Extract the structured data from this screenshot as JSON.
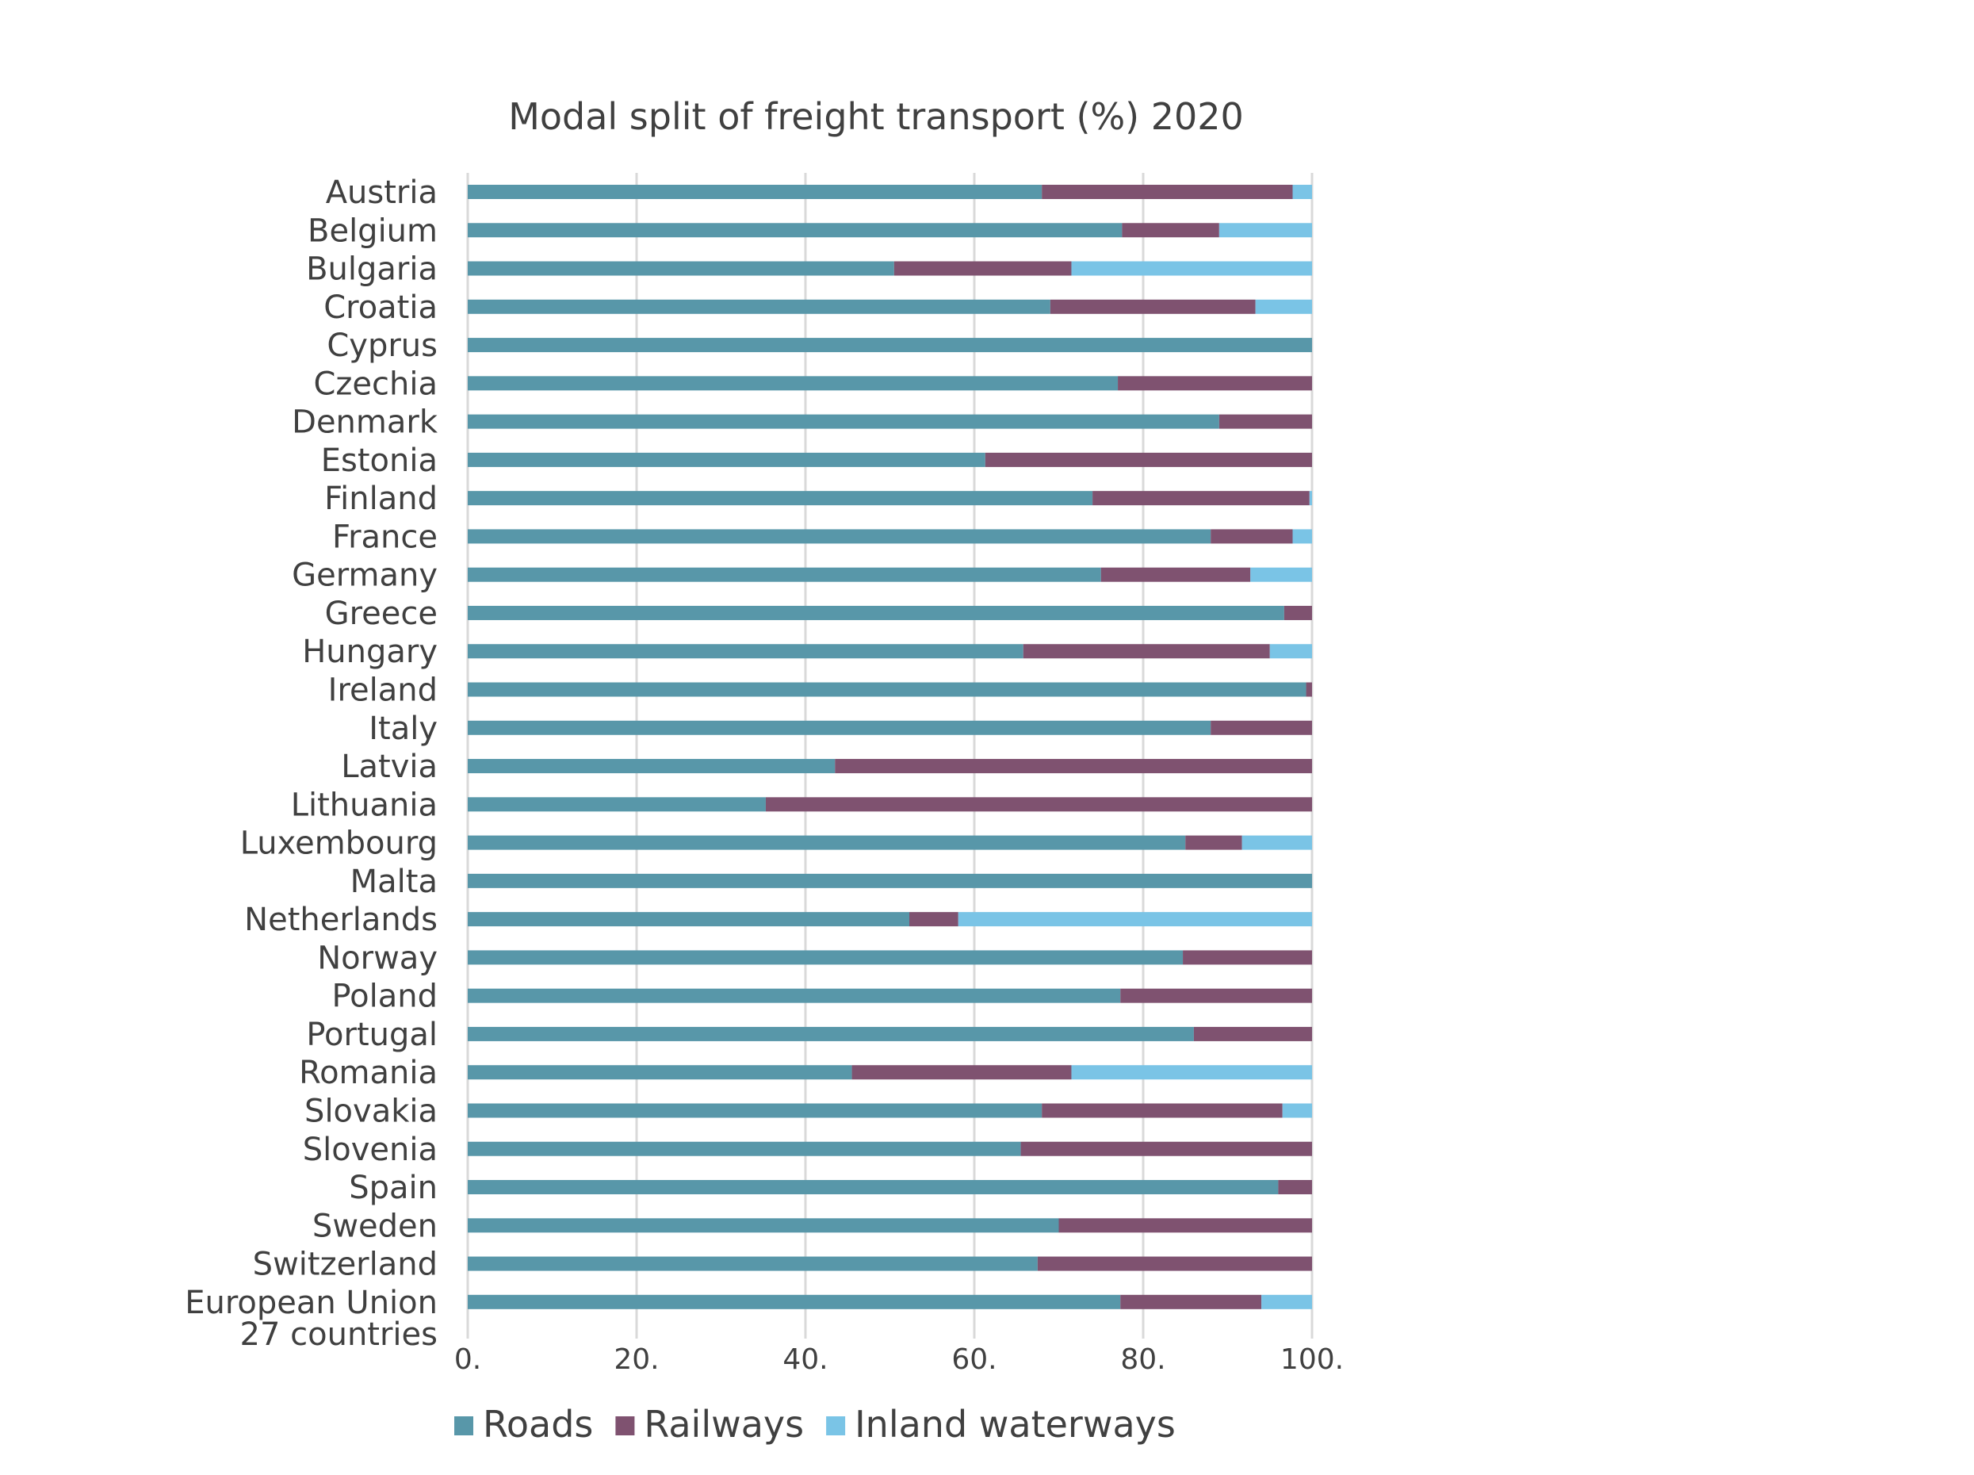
{
  "chart_data": {
    "type": "bar",
    "orientation": "horizontal",
    "stacked": true,
    "title": "Modal split of freight transport (%) 2020",
    "xlabel": "",
    "ylabel": "",
    "xlim": [
      0,
      100
    ],
    "x_ticks": [
      0,
      20,
      40,
      60,
      80,
      100
    ],
    "x_tick_labels": [
      "0.",
      "20.",
      "40.",
      "60.",
      "80.",
      "100."
    ],
    "grid": "vertical",
    "legend_position": "bottom",
    "categories": [
      "Austria",
      "Belgium",
      "Bulgaria",
      "Croatia",
      "Cyprus",
      "Czechia",
      "Denmark",
      "Estonia",
      "Finland",
      "France",
      "Germany",
      "Greece",
      "Hungary",
      "Ireland",
      "Italy",
      "Latvia",
      "Lithuania",
      "Luxembourg",
      "Malta",
      "Netherlands",
      "Norway",
      "Poland",
      "Portugal",
      "Romania",
      "Slovakia",
      "Slovenia",
      "Spain",
      "Sweden",
      "Switzerland",
      "European Union 27 countries"
    ],
    "category_lines": [
      [
        "Austria"
      ],
      [
        "Belgium"
      ],
      [
        "Bulgaria"
      ],
      [
        "Croatia"
      ],
      [
        "Cyprus"
      ],
      [
        "Czechia"
      ],
      [
        "Denmark"
      ],
      [
        "Estonia"
      ],
      [
        "Finland"
      ],
      [
        "France"
      ],
      [
        "Germany"
      ],
      [
        "Greece"
      ],
      [
        "Hungary"
      ],
      [
        "Ireland"
      ],
      [
        "Italy"
      ],
      [
        "Latvia"
      ],
      [
        "Lithuania"
      ],
      [
        "Luxembourg"
      ],
      [
        "Malta"
      ],
      [
        "Netherlands"
      ],
      [
        "Norway"
      ],
      [
        "Poland"
      ],
      [
        "Portugal"
      ],
      [
        "Romania"
      ],
      [
        "Slovakia"
      ],
      [
        "Slovenia"
      ],
      [
        "Spain"
      ],
      [
        "Sweden"
      ],
      [
        "Switzerland"
      ],
      [
        "European Union",
        "27 countries"
      ]
    ],
    "series": [
      {
        "name": "Roads",
        "color": "#5897a9",
        "values": [
          68,
          77.5,
          50.5,
          69,
          100,
          77,
          89,
          61.3,
          74,
          88,
          75,
          96.7,
          65.8,
          99.3,
          88,
          43.5,
          35.3,
          85,
          100,
          52.3,
          84.7,
          77.3,
          86,
          45.5,
          68,
          65.5,
          96,
          70,
          67.5,
          77.3
        ]
      },
      {
        "name": "Railways",
        "color": "#7f5270",
        "values": [
          29.7,
          11.5,
          21,
          24.3,
          0,
          23,
          11,
          38.7,
          25.7,
          9.7,
          17.7,
          3.3,
          29.2,
          0.7,
          12,
          56.5,
          64.7,
          6.7,
          0,
          5.8,
          15.3,
          22.7,
          14,
          26,
          28.5,
          34.5,
          4,
          30,
          32.5,
          16.7
        ]
      },
      {
        "name": "Inland waterways",
        "color": "#7ac4e6",
        "values": [
          2.3,
          11,
          28.5,
          6.7,
          0,
          0,
          0,
          0,
          0.3,
          2.3,
          7.3,
          0,
          5,
          0,
          0,
          0,
          0,
          8.3,
          0,
          41.9,
          0,
          0,
          0,
          28.5,
          3.5,
          0,
          0,
          0,
          0,
          6
        ]
      }
    ]
  }
}
